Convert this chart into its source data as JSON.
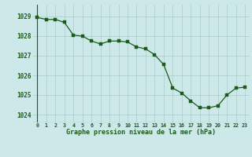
{
  "hours": [
    0,
    1,
    2,
    3,
    4,
    5,
    6,
    7,
    8,
    9,
    10,
    11,
    12,
    13,
    14,
    15,
    16,
    17,
    18,
    19,
    20,
    21,
    22,
    23
  ],
  "pressure": [
    1028.95,
    1028.85,
    1028.85,
    1028.7,
    1028.05,
    1028.0,
    1027.75,
    1027.6,
    1027.75,
    1027.75,
    1027.7,
    1027.45,
    1027.35,
    1027.05,
    1026.55,
    1025.35,
    1025.1,
    1024.7,
    1024.35,
    1024.35,
    1024.45,
    1025.0,
    1025.35,
    1025.4
  ],
  "line_color": "#1a5c1a",
  "marker_color": "#1a5c1a",
  "bg_color": "#cce8e8",
  "grid_color": "#aacccc",
  "xlabel": "Graphe pression niveau de la mer (hPa)",
  "xlabel_color": "#1a5c1a",
  "tick_color": "#1a5c1a",
  "ylim": [
    1023.6,
    1029.6
  ],
  "xlim": [
    -0.5,
    23.5
  ],
  "yticks": [
    1024,
    1025,
    1026,
    1027,
    1028,
    1029
  ],
  "figsize": [
    3.2,
    2.0
  ],
  "dpi": 100
}
